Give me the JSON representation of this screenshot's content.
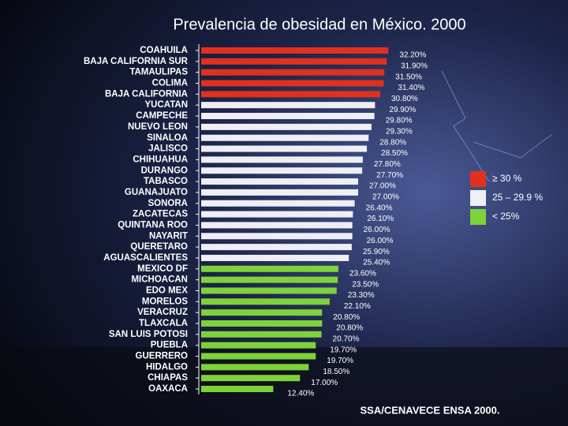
{
  "chart_data": {
    "type": "bar",
    "title": "Prevalencia de obesidad en México. 2000",
    "categories": [
      "COAHUILA",
      "BAJA CALIFORNIA SUR",
      "TAMAULIPAS",
      "COLIMA",
      "BAJA CALIFORNIA",
      "YUCATAN",
      "CAMPECHE",
      "NUEVO LEON",
      "SINALOA",
      "JALISCO",
      "CHIHUAHUA",
      "DURANGO",
      "TABASCO",
      "GUANAJUATO",
      "SONORA",
      "ZACATECAS",
      "QUINTANA ROO",
      "NAYARIT",
      "QUERETARO",
      "AGUASCALIENTES",
      "MEXICO DF",
      "MICHOACAN",
      "EDO MEX",
      "MORELOS",
      "VERACRUZ",
      "TLAXCALA",
      "SAN LUIS POTOSI",
      "PUEBLA",
      "GUERRERO",
      "HIDALGO",
      "CHIAPAS",
      "OAXACA"
    ],
    "values": [
      32.2,
      31.9,
      31.5,
      31.4,
      30.8,
      29.9,
      29.8,
      29.3,
      28.8,
      28.5,
      27.8,
      27.7,
      27.0,
      27.0,
      26.4,
      26.1,
      26.0,
      26.0,
      25.9,
      25.4,
      23.6,
      23.5,
      23.3,
      22.1,
      20.8,
      20.8,
      20.7,
      19.7,
      19.7,
      18.5,
      17.0,
      12.4
    ],
    "value_labels": [
      "32.20%",
      "31.90%",
      "31.50%",
      "31.40%",
      "30.80%",
      "29.90%",
      "29.80%",
      "29.30%",
      "28.80%",
      "28.50%",
      "27.80%",
      "27.70%",
      "27.00%",
      "27.00%",
      "26.40%",
      "26.10%",
      "26.00%",
      "26.00%",
      "25.90%",
      "25.40%",
      "23.60%",
      "23.50%",
      "23.30%",
      "22.10%",
      "20.80%",
      "20.80%",
      "20.70%",
      "19.70%",
      "19.70%",
      "18.50%",
      "17.00%",
      "12.40%"
    ],
    "colors": [
      "#e0301e",
      "#e0301e",
      "#e0301e",
      "#e0301e",
      "#e0301e",
      "#eeeef4",
      "#eeeef4",
      "#eeeef4",
      "#eeeef4",
      "#eeeef4",
      "#eeeef4",
      "#eeeef4",
      "#eeeef4",
      "#eeeef4",
      "#eeeef4",
      "#eeeef4",
      "#eeeef4",
      "#eeeef4",
      "#eeeef4",
      "#eeeef4",
      "#7ed23a",
      "#7ed23a",
      "#7ed23a",
      "#7ed23a",
      "#7ed23a",
      "#7ed23a",
      "#7ed23a",
      "#7ed23a",
      "#7ed23a",
      "#7ed23a",
      "#7ed23a",
      "#7ed23a"
    ],
    "legend": [
      {
        "label": "≥ 30 %",
        "color": "#e0301e"
      },
      {
        "label": "25 – 29.9 %",
        "color": "#eeeef4"
      },
      {
        "label": "< 25%",
        "color": "#7ed23a"
      }
    ],
    "source": "SSA/CENAVECE ENSA 2000."
  }
}
